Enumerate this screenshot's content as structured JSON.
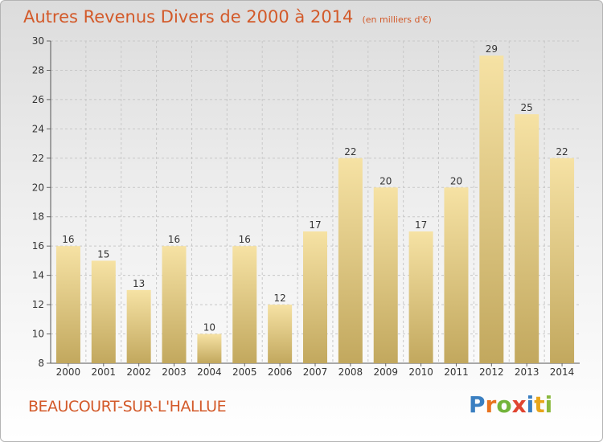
{
  "title": "Autres Revenus Divers de 2000 à 2014",
  "subtitle": "(en milliers d'€)",
  "commune": "BEAUCOURT-SUR-L'HALLUE",
  "logo": {
    "text": "Proxiti",
    "letter_colors": [
      "#3a7fc1",
      "#e8731f",
      "#73b43b",
      "#e04531",
      "#3a7fc1",
      "#e8a51a",
      "#8ab83d"
    ]
  },
  "colors": {
    "accent": "#d35a2a",
    "bar_light": "#f6e2a4",
    "bar_dark": "#c2a85e",
    "grid": "#c8c8c8"
  },
  "chart_data": {
    "type": "bar",
    "categories": [
      "2000",
      "2001",
      "2002",
      "2003",
      "2004",
      "2005",
      "2006",
      "2007",
      "2008",
      "2009",
      "2010",
      "2011",
      "2012",
      "2013",
      "2014"
    ],
    "values": [
      16,
      15,
      13,
      16,
      10,
      16,
      12,
      17,
      22,
      20,
      17,
      20,
      29,
      25,
      22
    ],
    "ylim": [
      8,
      30
    ],
    "yticks": [
      8,
      10,
      12,
      14,
      16,
      18,
      20,
      22,
      24,
      26,
      28,
      30
    ],
    "grid": true,
    "data_labels": true
  }
}
